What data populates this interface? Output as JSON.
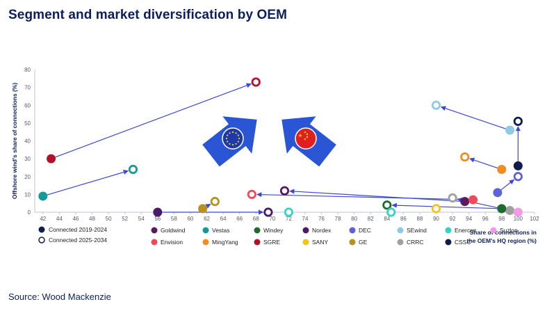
{
  "title": "Segment and market diversification by OEM",
  "source": "Source: Wood Mackenzie",
  "colors": {
    "title": "#0b1f5c",
    "arrow": "#3a46d6",
    "axis": "#bfc3cc",
    "eu_flag": "#1f3aa8",
    "cn_flag": "#e02020"
  },
  "chart_data": {
    "type": "scatter",
    "title": "",
    "ylabel": "Offshore wind's share of connections (%)",
    "xlabel": [
      "Share of connections in",
      "the OEM's HQ region (%)"
    ],
    "xlim": [
      41,
      102
    ],
    "ylim": [
      0,
      80
    ],
    "xticks": [
      42,
      44,
      46,
      48,
      50,
      52,
      54,
      56,
      58,
      60,
      62,
      64,
      66,
      68,
      70,
      72,
      74,
      76,
      78,
      80,
      82,
      84,
      86,
      88,
      90,
      92,
      94,
      96,
      98,
      100,
      102
    ],
    "yticks": [
      0,
      10,
      20,
      30,
      40,
      50,
      60,
      70,
      80
    ],
    "period_legend": [
      {
        "label": "Connected 2019-2024",
        "style": "filled"
      },
      {
        "label": "Connected 2025-2034",
        "style": "ring"
      }
    ],
    "oems": [
      {
        "name": "Goldwind",
        "color": "#5b1a5e"
      },
      {
        "name": "Vestas",
        "color": "#149a9a"
      },
      {
        "name": "Windey",
        "color": "#1f6b2e"
      },
      {
        "name": "Nordex",
        "color": "#4b1a66"
      },
      {
        "name": "DEC",
        "color": "#5c62d9"
      },
      {
        "name": "SEwind",
        "color": "#8ecae6"
      },
      {
        "name": "Enercon",
        "color": "#34d3c8"
      },
      {
        "name": "Suzlon",
        "color": "#f39ae6"
      },
      {
        "name": "Envision",
        "color": "#f04a5a"
      },
      {
        "name": "MingYang",
        "color": "#f28c1e"
      },
      {
        "name": "SGRE",
        "color": "#b0122b"
      },
      {
        "name": "SANY",
        "color": "#f6c21c"
      },
      {
        "name": "GE",
        "color": "#b8901c"
      },
      {
        "name": "CRRC",
        "color": "#a0a0a0"
      },
      {
        "name": "CSSC",
        "color": "#101c4e"
      }
    ],
    "points": [
      {
        "oem": "SGRE",
        "from": [
          43,
          30
        ],
        "to": [
          68,
          73
        ]
      },
      {
        "oem": "Vestas",
        "from": [
          42,
          9
        ],
        "to": [
          53,
          24
        ]
      },
      {
        "oem": "Nordex",
        "from": [
          56,
          0
        ],
        "to": [
          69.5,
          0
        ]
      },
      {
        "oem": "GE",
        "from": [
          61.5,
          2
        ],
        "to": [
          63,
          6
        ]
      },
      {
        "oem": "SEwind",
        "from": [
          99,
          46
        ],
        "to": [
          90,
          60
        ]
      },
      {
        "oem": "CSSC",
        "from": [
          100,
          26
        ],
        "to": [
          100,
          51
        ]
      },
      {
        "oem": "DEC",
        "from": [
          97.5,
          11
        ],
        "to": [
          100,
          20
        ]
      },
      {
        "oem": "MingYang",
        "from": [
          98,
          24
        ],
        "to": [
          93.5,
          31
        ]
      },
      {
        "oem": "Goldwind",
        "from": [
          93.5,
          6
        ],
        "to": [
          71.5,
          12
        ]
      },
      {
        "oem": "Envision",
        "from": [
          94.5,
          7
        ],
        "to": [
          67.5,
          10
        ]
      },
      {
        "oem": "CRRC",
        "from": [
          99,
          1
        ],
        "to": [
          92,
          8
        ]
      },
      {
        "oem": "Windey",
        "from": [
          98,
          2
        ],
        "to": [
          84,
          4
        ]
      },
      {
        "oem": "Enercon",
        "from": [
          null,
          null
        ],
        "to": [
          72,
          0
        ]
      },
      {
        "oem": "Enercon",
        "from": [
          null,
          null
        ],
        "to": [
          84.5,
          0
        ]
      },
      {
        "oem": "SANY",
        "from": [
          null,
          null
        ],
        "to": [
          90,
          2
        ]
      },
      {
        "oem": "Suzlon",
        "from": [
          100,
          0
        ],
        "to": [
          null,
          null
        ]
      }
    ],
    "big_arrows": [
      {
        "name": "eu-arrow",
        "direction": "up-right",
        "flag": "EU"
      },
      {
        "name": "china-arrow",
        "direction": "up-left",
        "flag": "China"
      }
    ]
  }
}
